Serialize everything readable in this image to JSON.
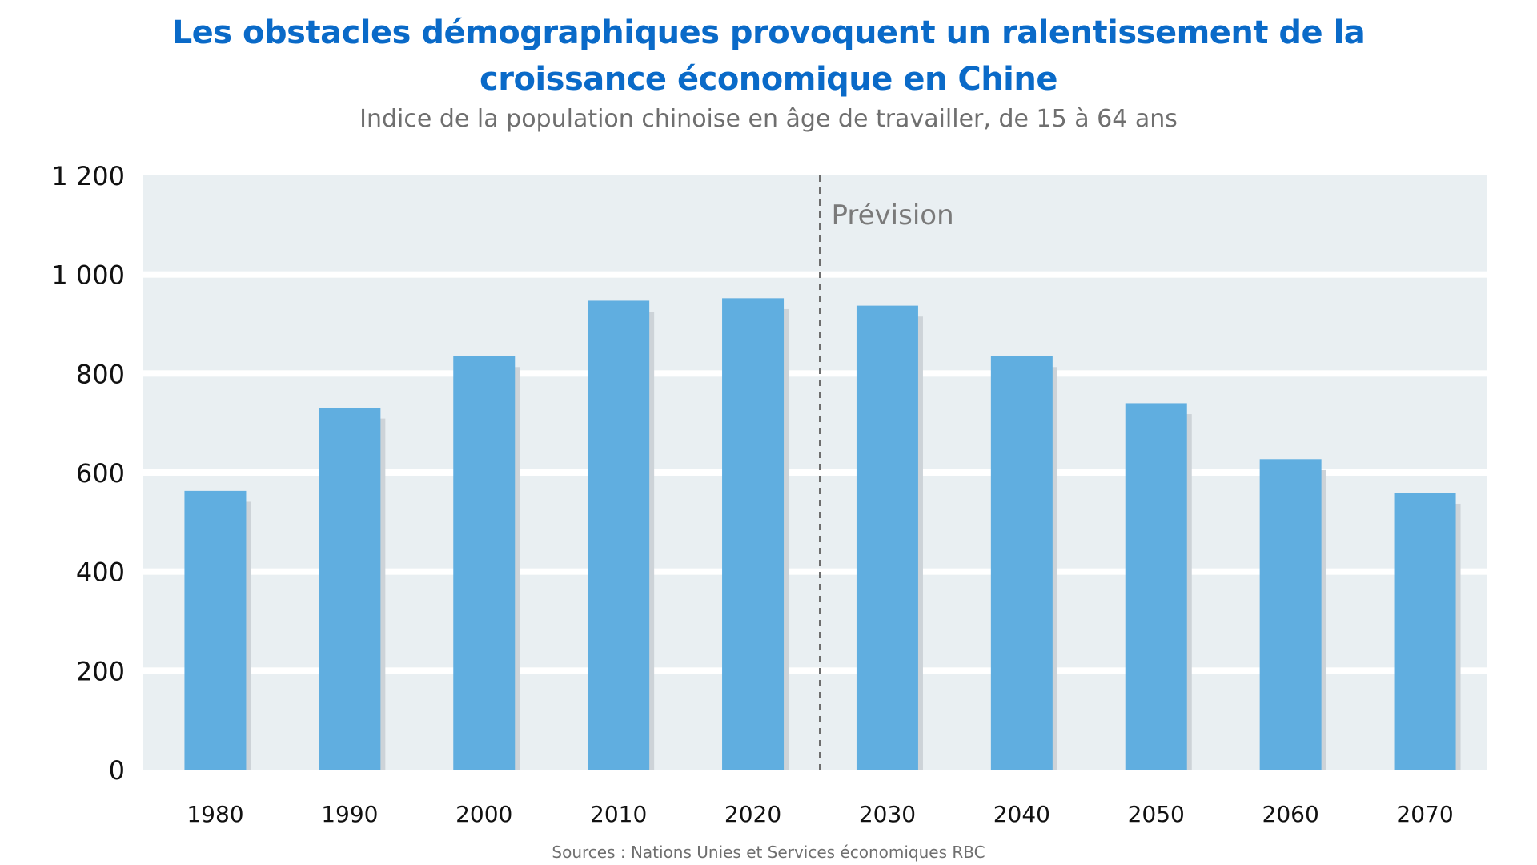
{
  "chart_data": {
    "type": "bar",
    "title": "Les obstacles démographiques provoquent un ralentissement de la croissance économique en Chine",
    "title_lines": [
      "Les obstacles démographiques provoquent un ralentissement de la",
      "croissance économique en Chine"
    ],
    "subtitle": "Indice de la population chinoise en âge de travailler, de 15 à 64 ans",
    "source": "Sources : Nations Unies et Services économiques RBC",
    "xlabel": "",
    "ylabel": "",
    "categories": [
      "1980",
      "1990",
      "2000",
      "2010",
      "2020",
      "2030",
      "2040",
      "2050",
      "2060",
      "2070"
    ],
    "values": [
      563,
      731,
      835,
      947,
      952,
      937,
      835,
      740,
      627,
      559
    ],
    "ylim": [
      0,
      1200
    ],
    "yticks": [
      0,
      200,
      400,
      600,
      800,
      1000,
      1200
    ],
    "ytick_labels": [
      "0",
      "200",
      "400",
      "600",
      "800",
      "1 000",
      "1 200"
    ],
    "grid": true,
    "forecast_divider": {
      "after_category": "2020",
      "label": "Prévision"
    },
    "colors": {
      "title": "#0a6ac8",
      "bar": "#60aee0",
      "bar_shadow": "#cdd3d8",
      "plot_background": "#e9eff2",
      "gridline": "#ffffff",
      "divider": "#6e6e6e",
      "subtitle": "#6f6f6f"
    }
  }
}
